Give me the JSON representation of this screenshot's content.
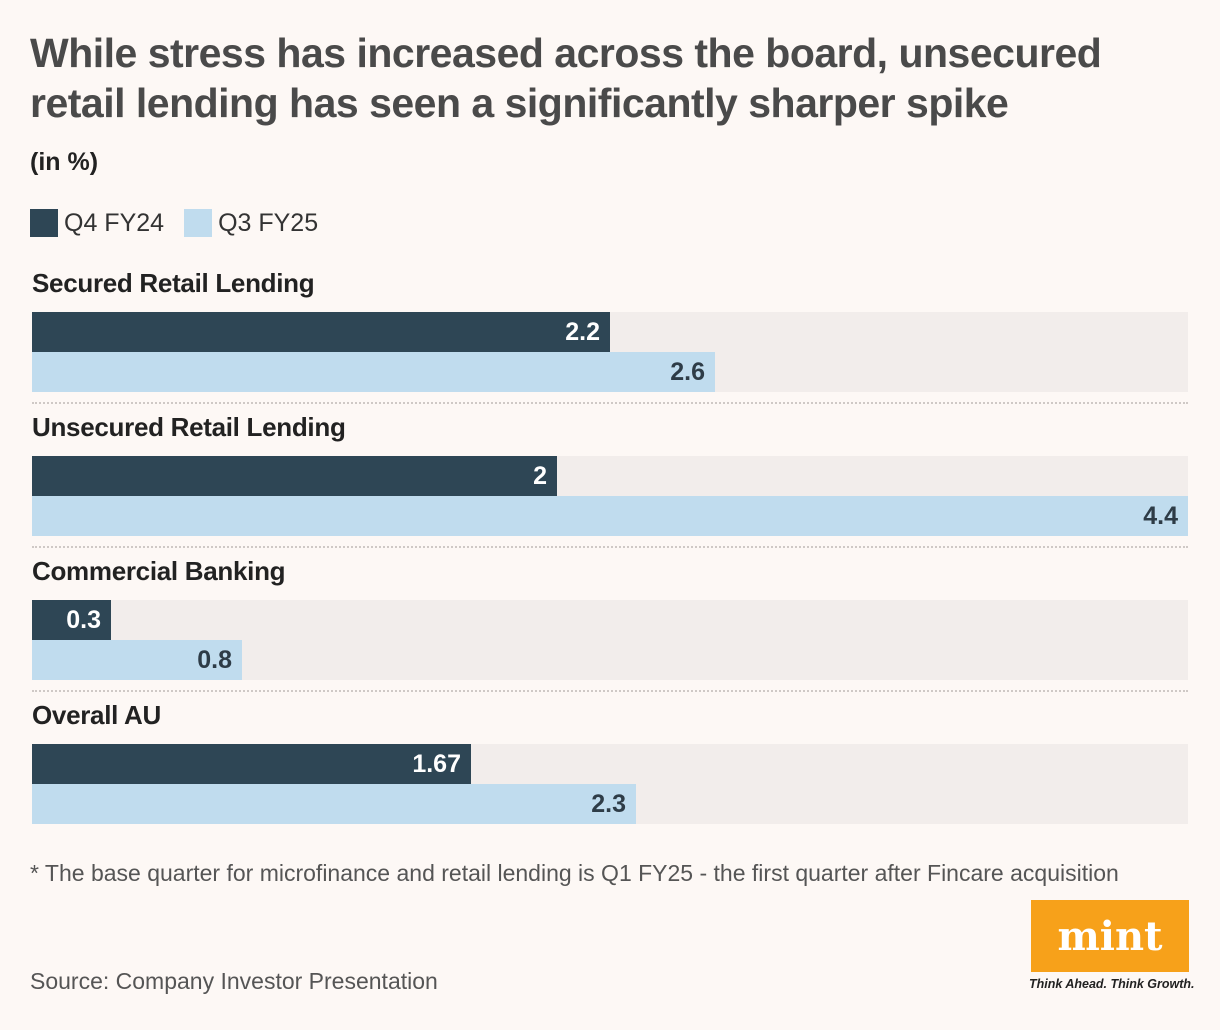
{
  "chart_data": {
    "type": "bar",
    "orientation": "horizontal",
    "title": "While stress has increased across the board, unsecured retail lending has seen a significantly sharper spike",
    "subtitle": "(in %)",
    "categories": [
      "Secured Retail Lending",
      "Unsecured Retail Lending",
      "Commercial Banking",
      "Overall AU"
    ],
    "series": [
      {
        "name": "Q4 FY24",
        "color": "#2e4655",
        "values": [
          2.2,
          2.0,
          0.3,
          1.67
        ],
        "labels": [
          "2.2",
          "2",
          "0.3",
          "1.67"
        ]
      },
      {
        "name": "Q3 FY25",
        "color": "#c0dcee",
        "values": [
          2.6,
          4.4,
          0.8,
          2.3
        ],
        "labels": [
          "2.6",
          "4.4",
          "0.8",
          "2.3"
        ]
      }
    ],
    "xlim": [
      0,
      4.4
    ],
    "grid": false,
    "legend": "top-left"
  },
  "footnote": "* The base quarter for microfinance and retail lending is Q1 FY25 - the first quarter after Fincare acquisition",
  "source": "Source: Company Investor Presentation",
  "brand": {
    "logo_text": "mint",
    "tagline": "Think Ahead. Think Growth.",
    "color": "#f7a11a"
  }
}
